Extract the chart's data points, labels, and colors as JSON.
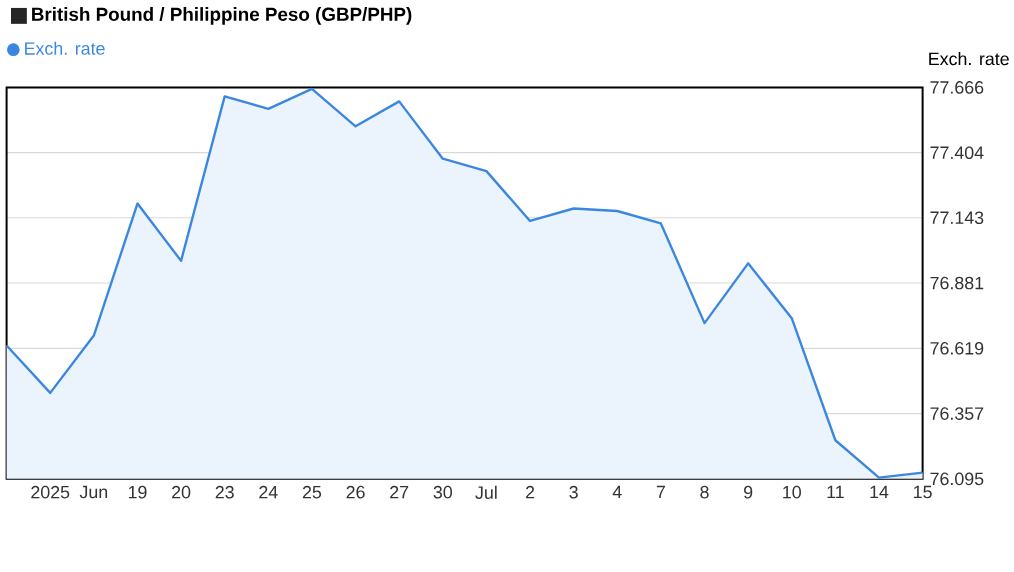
{
  "chart_data": {
    "type": "area",
    "title": "British Pound / Philippine Peso (GBP/PHP)",
    "ylabel": "Exch. rate",
    "categories": [
      null,
      "2025",
      "Jun",
      "19",
      "20",
      "23",
      "24",
      "25",
      "26",
      "27",
      "30",
      "Jul",
      "2",
      "3",
      "4",
      "7",
      "8",
      "9",
      "10",
      "11",
      "14",
      "15"
    ],
    "series": [
      {
        "name": "Exch. rate",
        "color": "#3b87e0",
        "values": [
          76.63,
          76.44,
          76.67,
          77.2,
          76.97,
          77.63,
          77.58,
          77.66,
          77.51,
          77.61,
          77.38,
          77.33,
          77.13,
          77.18,
          77.17,
          77.12,
          76.72,
          76.96,
          76.74,
          76.25,
          76.1,
          76.12
        ]
      }
    ],
    "ylim": [
      76.095,
      77.666
    ],
    "yticks": [
      76.095,
      76.357,
      76.619,
      76.881,
      77.143,
      77.404,
      77.666
    ],
    "grid": "y",
    "legend": "top left",
    "marker": "none"
  }
}
